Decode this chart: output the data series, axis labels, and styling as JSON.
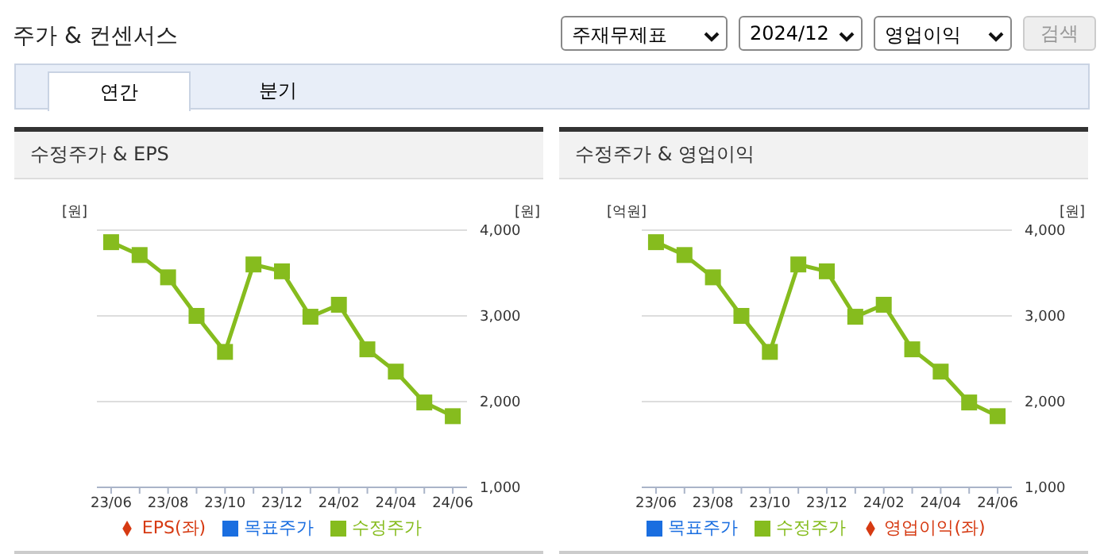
{
  "chart_data": [
    {
      "type": "other",
      "title": "주가 & 컨센서스",
      "annotations": [
        "주재무제표",
        "2024/12",
        "영업이익",
        "검색",
        "연간",
        "분기"
      ]
    },
    {
      "type": "line",
      "title": "수정주가 & EPS",
      "ylabel": "[원]",
      "y2label": "[원]",
      "categories": [
        "23/06",
        null,
        "23/08",
        null,
        "23/10",
        null,
        "23/12",
        null,
        "24/02",
        null,
        "24/04",
        null,
        "24/06"
      ],
      "series": [
        {
          "name": "목표주가",
          "type": "bar",
          "color": "#1a6ee0",
          "values": [
            null,
            null,
            null,
            null,
            null,
            null,
            null,
            null,
            null,
            null,
            null,
            null,
            null
          ]
        },
        {
          "name": "EPS(좌)",
          "type": "line",
          "marker": "diamond",
          "color": "#d63a12",
          "values": [
            null,
            null,
            null,
            null,
            null,
            null,
            null,
            null,
            null,
            null,
            null,
            null,
            null
          ]
        },
        {
          "name": "수정주가",
          "type": "line",
          "marker": "square",
          "axis": "y2",
          "color": "#86bc1e",
          "values": [
            3860,
            3710,
            3450,
            3000,
            2580,
            3600,
            3520,
            2990,
            3130,
            2610,
            2350,
            1990,
            1830
          ]
        }
      ],
      "y2lim": [
        1000,
        4000
      ],
      "y2ticks": [
        {
          "value": 1000,
          "label": "1,000"
        },
        {
          "value": 2000,
          "label": "2,000"
        },
        {
          "value": 3000,
          "label": "3,000"
        },
        {
          "value": 4000,
          "label": "4,000"
        }
      ],
      "grid": "y",
      "legend": "bottom"
    },
    {
      "type": "line",
      "title": "수정주가 & 영업이익",
      "ylabel": "[억원]",
      "y2label": "[원]",
      "categories": [
        "23/06",
        null,
        "23/08",
        null,
        "23/10",
        null,
        "23/12",
        null,
        "24/02",
        null,
        "24/04",
        null,
        "24/06"
      ],
      "series": [
        {
          "name": "목표주가",
          "type": "bar",
          "color": "#1a6ee0",
          "values": [
            null,
            null,
            null,
            null,
            null,
            null,
            null,
            null,
            null,
            null,
            null,
            null,
            null
          ]
        },
        {
          "name": "영업이익(좌)",
          "type": "line",
          "marker": "diamond",
          "color": "#d63a12",
          "values": [
            null,
            null,
            null,
            null,
            null,
            null,
            null,
            null,
            null,
            null,
            null,
            null,
            null
          ]
        },
        {
          "name": "수정주가",
          "type": "line",
          "marker": "square",
          "axis": "y2",
          "color": "#86bc1e",
          "values": [
            3860,
            3710,
            3450,
            3000,
            2580,
            3600,
            3520,
            2990,
            3130,
            2610,
            2350,
            1990,
            1830
          ]
        }
      ],
      "y2lim": [
        1000,
        4000
      ],
      "y2ticks": [
        {
          "value": 1000,
          "label": "1,000"
        },
        {
          "value": 2000,
          "label": "2,000"
        },
        {
          "value": 3000,
          "label": "3,000"
        },
        {
          "value": 4000,
          "label": "4,000"
        }
      ],
      "grid": "y",
      "legend": "bottom"
    }
  ]
}
